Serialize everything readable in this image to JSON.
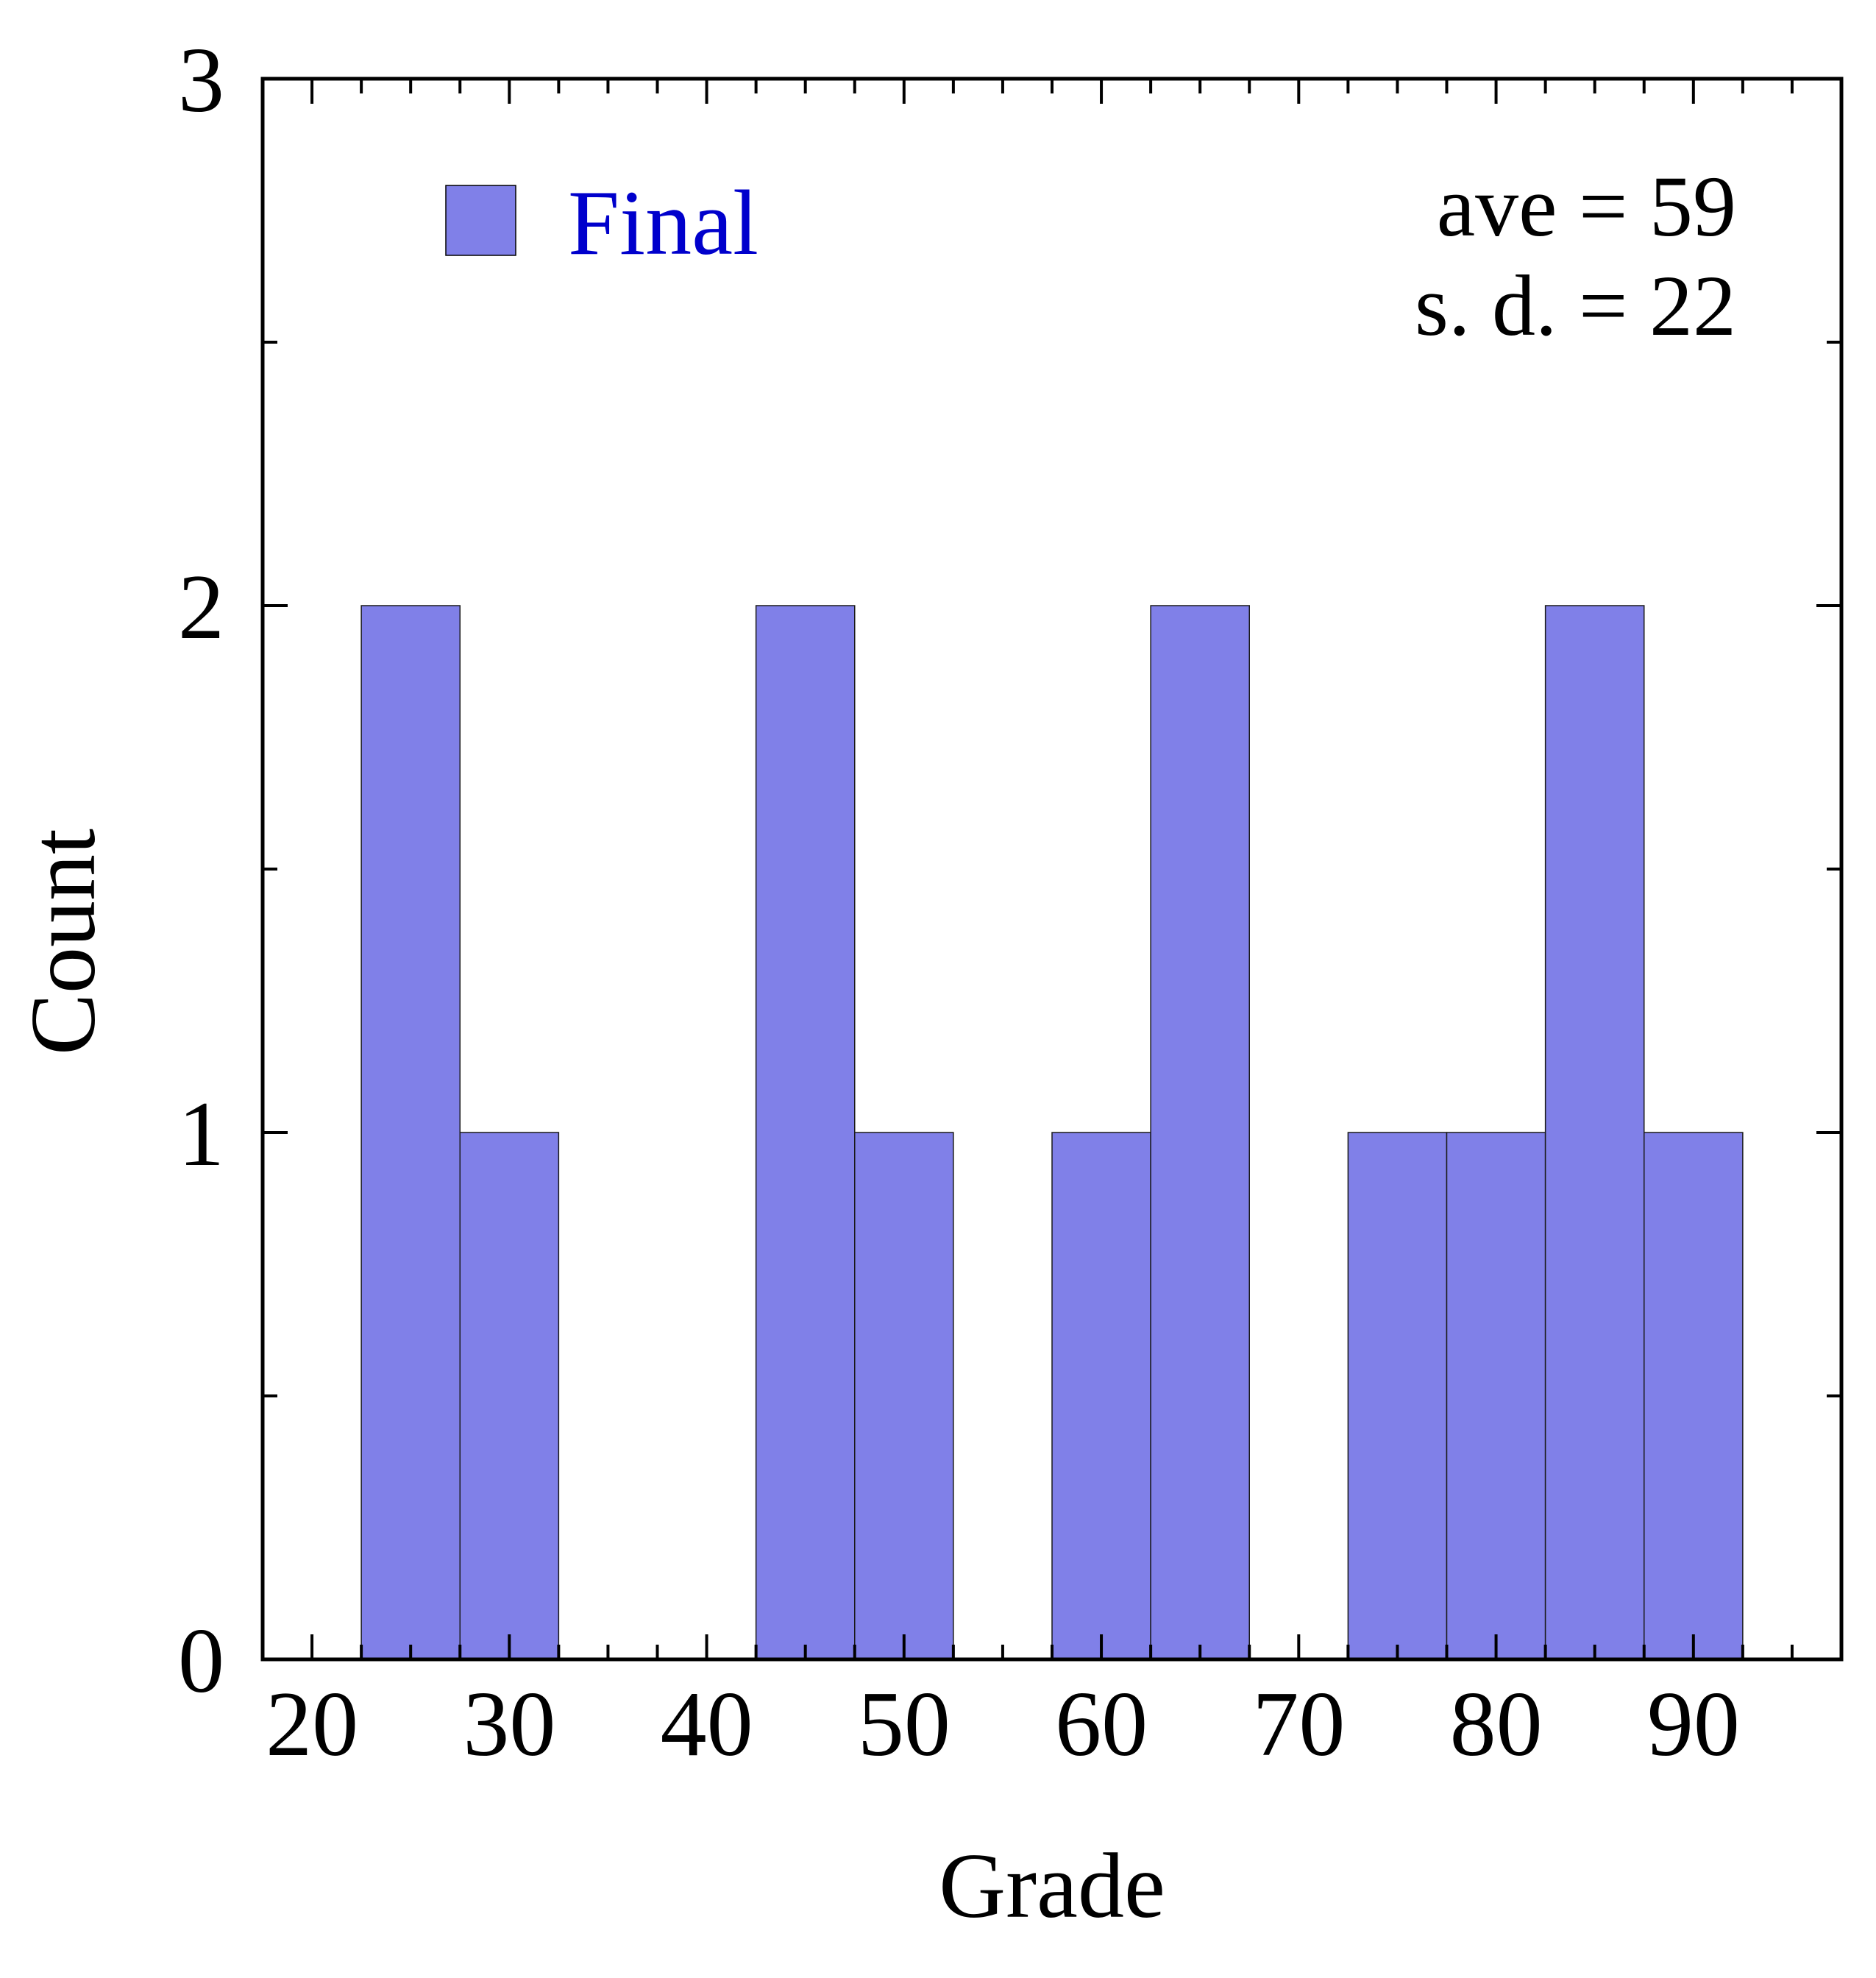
{
  "chart_data": {
    "type": "bar",
    "xlabel": "Grade",
    "ylabel": "Count",
    "xlim": [
      17.5,
      97.5
    ],
    "ylim": [
      0,
      3
    ],
    "x_ticks": [
      20,
      30,
      40,
      50,
      60,
      70,
      80,
      90
    ],
    "x_tick_labels": [
      "20",
      "30",
      "40",
      "50",
      "60",
      "70",
      "80",
      "90"
    ],
    "x_minor_step": 2.5,
    "y_ticks": [
      0,
      1,
      2,
      3
    ],
    "y_tick_labels": [
      "0",
      "1",
      "2",
      "3"
    ],
    "y_minor_step": 0.5,
    "bin_width": 5,
    "series": [
      {
        "name": "Final",
        "color": "#8080e8",
        "bin_centers": [
          25,
          30,
          35,
          40,
          45,
          50,
          55,
          60,
          65,
          70,
          75,
          80,
          85,
          90
        ],
        "values": [
          2,
          1,
          0,
          0,
          2,
          1,
          0,
          1,
          2,
          0,
          1,
          1,
          2,
          1
        ]
      }
    ],
    "legend": {
      "position": "top-left",
      "label": "Final",
      "swatch_color": "#8080e8",
      "text_color": "#0000cc"
    },
    "annotations": [
      "ave = 59",
      "s. d. = 22"
    ],
    "grid": false
  }
}
